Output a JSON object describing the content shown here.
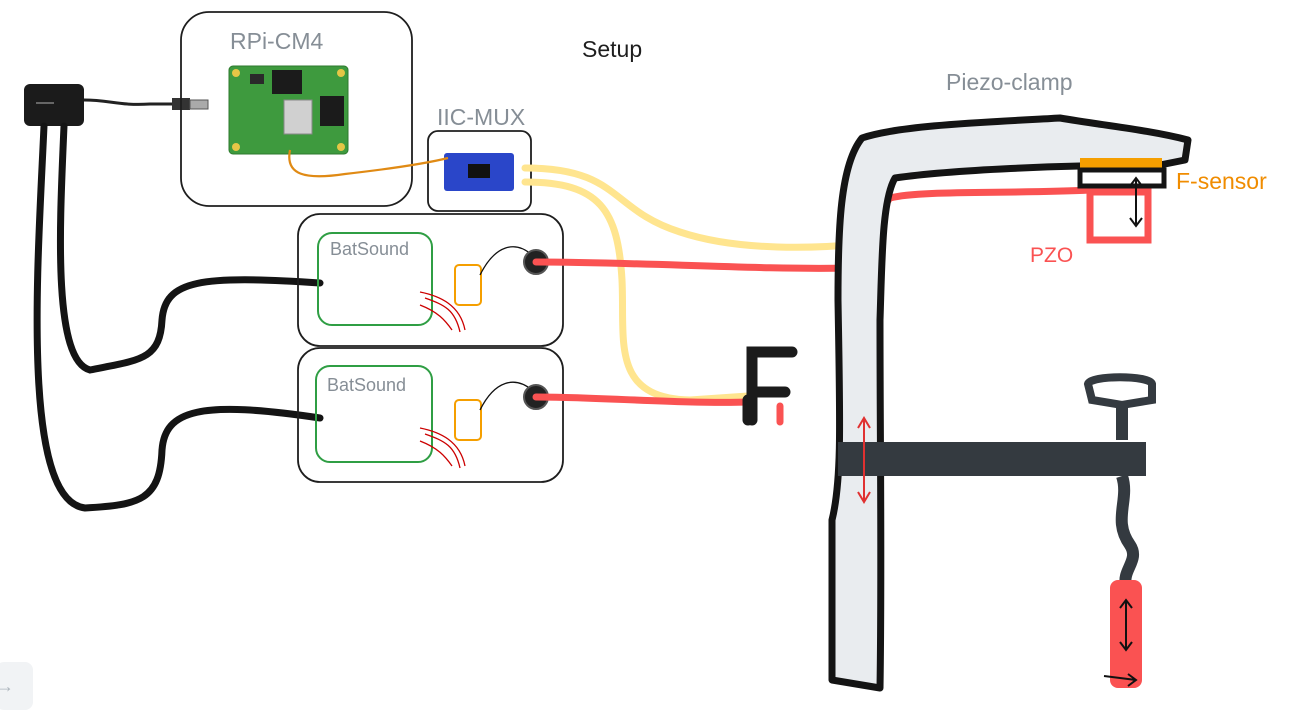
{
  "title": "Setup",
  "components": {
    "rpi": "RPi-CM4",
    "mux": "IIC-MUX",
    "batsound1": "BatSound",
    "batsound2": "BatSound",
    "clamp": "Piezo-clamp",
    "force_sensor": "F-sensor",
    "piezo": "PZO"
  },
  "nav": {
    "icon": "arrow-right-icon",
    "glyph": "→"
  },
  "colors": {
    "stroke": "#1e1e1e",
    "label_gray": "#868e96",
    "force": "#f08c00",
    "piezo": "#fa5252",
    "yellow_wire": "#ffec99",
    "red_wire": "#fa5252",
    "boxes_green": "#2f9e44",
    "clamp_fill": "#e9ecef",
    "clamp_bar": "#343a40"
  }
}
